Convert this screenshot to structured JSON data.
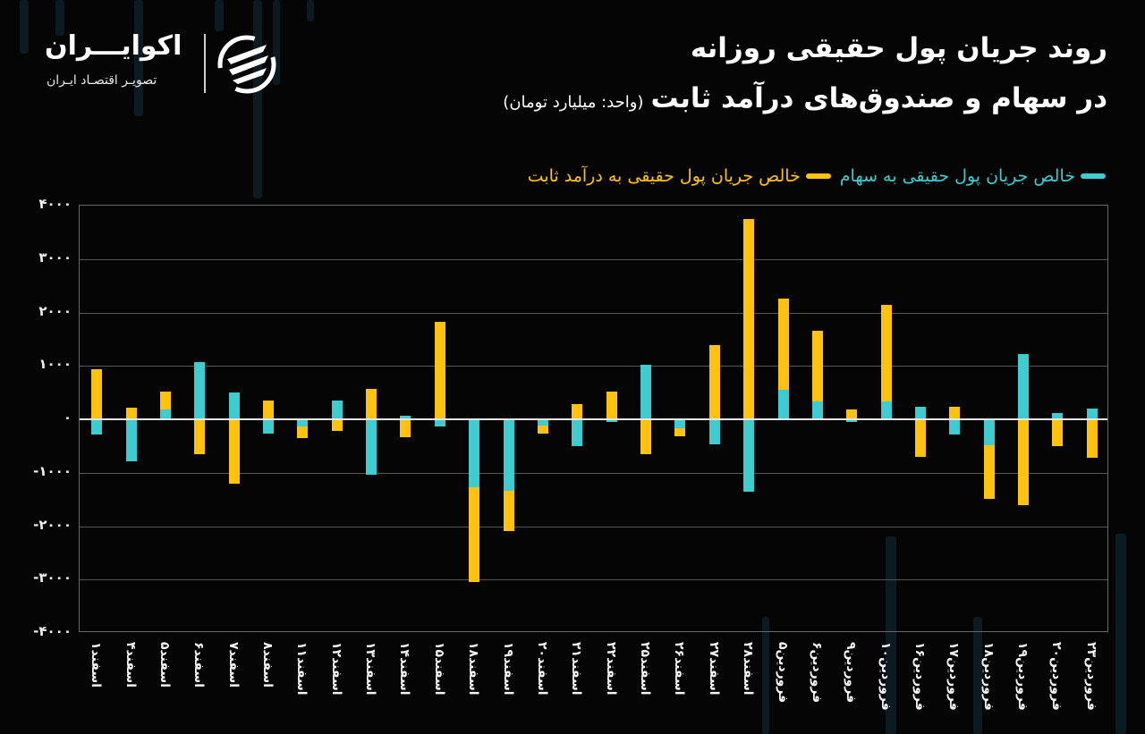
{
  "header": {
    "title_line1": "روند جریان پول حقیقی روزانه",
    "title_line2": "در سهام و صندوق‌های درآمد ثابت",
    "unit": "(واحد: میلیارد تومان)"
  },
  "logo": {
    "name": "اکوایـــران",
    "tagline": "تصویـر اقتصـاد ایـران"
  },
  "colors": {
    "equity": "#3ECCD0",
    "fixed_income": "#FFC20E",
    "background": "#050505"
  },
  "legend": {
    "equity": "خالص جریان پول حقیقی به سهام",
    "fixed_income": "خالص جریان پول حقیقی به درآمد ثابت"
  },
  "axis": {
    "y_ticks": [
      "۴۰۰۰",
      "۳۰۰۰",
      "۲۰۰۰",
      "۱۰۰۰",
      "۰",
      "-۱۰۰۰",
      "-۲۰۰۰",
      "-۳۰۰۰",
      "-۴۰۰۰"
    ]
  },
  "chart_data": {
    "type": "bar",
    "stacked": true,
    "title": "روند جریان پول حقیقی روزانه در سهام و صندوق‌های درآمد ثابت",
    "subtitle": "(واحد: میلیارد تومان)",
    "xlabel": "",
    "ylabel": "میلیارد تومان",
    "ylim": [
      -4000,
      4000
    ],
    "y_ticks": [
      4000,
      3000,
      2000,
      1000,
      0,
      -1000,
      -2000,
      -3000,
      -4000
    ],
    "grid": true,
    "legend_position": "top-right",
    "categories": [
      "اسفند۱",
      "اسفند۴",
      "اسفند۵",
      "اسفند۶",
      "اسفند۷",
      "اسفند۸",
      "اسفند۱۱",
      "اسفند۱۲",
      "اسفند۱۳",
      "اسفند۱۴",
      "اسفند۱۵",
      "اسفند۱۸",
      "اسفند۱۹",
      "اسفند۲۰",
      "اسفند۲۱",
      "اسفند۲۲",
      "اسفند۲۵",
      "اسفند۲۶",
      "اسفند۲۷",
      "اسفند۲۸",
      "فروردین۵",
      "فروردین۶",
      "فروردین۹",
      "فروردین۱۰",
      "فروردین۱۶",
      "فروردین۱۷",
      "فروردین۱۸",
      "فروردین۱۹",
      "فروردین۲۰",
      "فروردین۲۳"
    ],
    "series": [
      {
        "name": "خالص جریان پول حقیقی به سهام",
        "color": "#3ECCD0",
        "values": [
          -280,
          -790,
          180,
          1070,
          500,
          -260,
          -130,
          350,
          -1040,
          70,
          -140,
          -1280,
          -1340,
          -110,
          -500,
          -50,
          1020,
          -170,
          -470,
          -1360,
          550,
          340,
          -50,
          340,
          240,
          -280,
          -490,
          1220,
          110,
          200
        ]
      },
      {
        "name": "خالص جریان پول حقیقی به درآمد ثابت",
        "color": "#FFC20E",
        "values": [
          940,
          210,
          340,
          -650,
          -1200,
          350,
          -220,
          -210,
          570,
          -340,
          1830,
          -1770,
          -750,
          -150,
          280,
          520,
          -650,
          -150,
          1390,
          3750,
          1710,
          1320,
          180,
          1810,
          -700,
          230,
          -1000,
          -1600,
          -500,
          -720
        ]
      }
    ]
  }
}
